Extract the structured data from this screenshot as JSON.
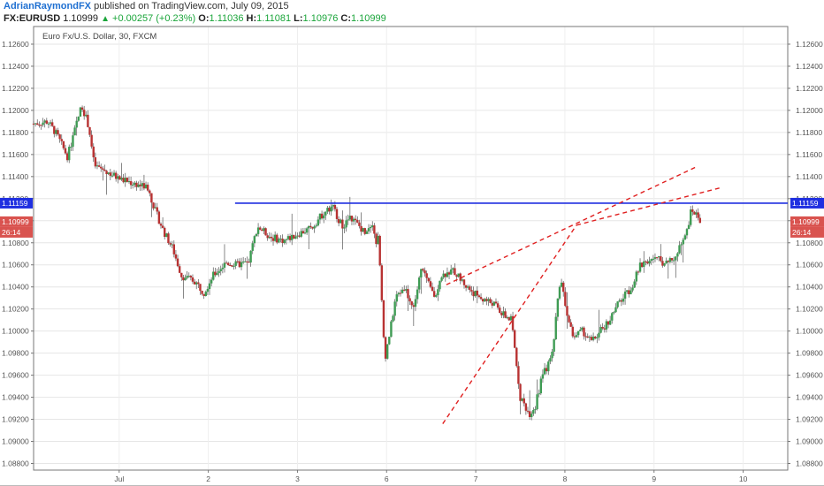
{
  "header": {
    "author": "AdrianRaymondFX",
    "published": " published on TradingView.com, July 09, 2015",
    "symbol": "FX:EURUSD",
    "price": "1.10999",
    "change": "+0.00257 (+0.23%)",
    "o_label": "O:",
    "o_value": "1.11036",
    "h_label": "H:",
    "h_value": "1.11081",
    "l_label": "L:",
    "l_value": "1.10976",
    "c_label": "C:",
    "c_value": "1.10999"
  },
  "colors": {
    "up": "#3e9b53",
    "down": "#b83232",
    "level": "#1f2fe0",
    "trend": "#e02020",
    "badge_price": "#d9534f",
    "badge_level": "#1f2fe0"
  },
  "chart_data": {
    "type": "candlestick",
    "title": "Euro Fx/U.S. Dollar, 30, FXCM",
    "y_ticks": [
      "1.12600",
      "1.12400",
      "1.12200",
      "1.12000",
      "1.11800",
      "1.11600",
      "1.11400",
      "1.11200",
      "1.11000",
      "1.10800",
      "1.10600",
      "1.10400",
      "1.10200",
      "1.10000",
      "1.09800",
      "1.09600",
      "1.09400",
      "1.09200",
      "1.09000",
      "1.08800"
    ],
    "ylim": [
      1.0874,
      1.1276
    ],
    "x_ticks": [
      {
        "label": "Jul",
        "t": 1
      },
      {
        "label": "2",
        "t": 2
      },
      {
        "label": "3",
        "t": 3
      },
      {
        "label": "6",
        "t": 4
      },
      {
        "label": "7",
        "t": 5
      },
      {
        "label": "8",
        "t": 6
      },
      {
        "label": "9",
        "t": 7
      },
      {
        "label": "10",
        "t": 8
      }
    ],
    "xlim": [
      0.04,
      8.5
    ],
    "last_price": {
      "value": 1.10999,
      "label": "1.10999",
      "countdown": "26:14"
    },
    "horizontal_level": {
      "value": 1.11159,
      "label": "1.11159",
      "x_start": 2.3
    },
    "trendlines": [
      {
        "x": [
          4.63,
          6.13
        ],
        "y": [
          1.0916,
          1.1096
        ]
      },
      {
        "x": [
          6.13,
          7.75
        ],
        "y": [
          1.1096,
          1.113
        ]
      },
      {
        "x": [
          4.67,
          7.48
        ],
        "y": [
          1.1042,
          1.1149
        ]
      }
    ],
    "path": [
      [
        0.04,
        1.1188
      ],
      [
        0.2,
        1.119
      ],
      [
        0.3,
        1.1178
      ],
      [
        0.42,
        1.1158
      ],
      [
        0.58,
        1.1205
      ],
      [
        0.66,
        1.1185
      ],
      [
        0.72,
        1.115
      ],
      [
        0.85,
        1.1145
      ],
      [
        1.0,
        1.1138
      ],
      [
        1.2,
        1.1133
      ],
      [
        1.32,
        1.113
      ],
      [
        1.4,
        1.111
      ],
      [
        1.5,
        1.109
      ],
      [
        1.6,
        1.1075
      ],
      [
        1.7,
        1.105
      ],
      [
        1.85,
        1.1045
      ],
      [
        1.95,
        1.1035
      ],
      [
        2.05,
        1.105
      ],
      [
        2.2,
        1.1062
      ],
      [
        2.3,
        1.106
      ],
      [
        2.45,
        1.1062
      ],
      [
        2.55,
        1.1095
      ],
      [
        2.7,
        1.1085
      ],
      [
        2.85,
        1.1082
      ],
      [
        3.0,
        1.1088
      ],
      [
        3.15,
        1.1093
      ],
      [
        3.3,
        1.1108
      ],
      [
        3.4,
        1.1112
      ],
      [
        3.5,
        1.1095
      ],
      [
        3.6,
        1.1103
      ],
      [
        3.75,
        1.109
      ],
      [
        3.85,
        1.11
      ],
      [
        3.88,
        1.1075
      ],
      [
        3.9,
        1.1095
      ],
      [
        3.98,
        1.0975
      ],
      [
        4.05,
        1.1005
      ],
      [
        4.1,
        1.103
      ],
      [
        4.2,
        1.104
      ],
      [
        4.3,
        1.102
      ],
      [
        4.4,
        1.106
      ],
      [
        4.45,
        1.1045
      ],
      [
        4.55,
        1.103
      ],
      [
        4.6,
        1.105
      ],
      [
        4.75,
        1.1055
      ],
      [
        4.9,
        1.104
      ],
      [
        5.05,
        1.103
      ],
      [
        5.2,
        1.1025
      ],
      [
        5.3,
        1.1015
      ],
      [
        5.4,
        1.101
      ],
      [
        5.5,
        1.094
      ],
      [
        5.6,
        1.0925
      ],
      [
        5.66,
        1.093
      ],
      [
        5.75,
        1.096
      ],
      [
        5.85,
        1.0975
      ],
      [
        5.95,
        1.105
      ],
      [
        6.05,
        1.1005
      ],
      [
        6.1,
        1.0995
      ],
      [
        6.2,
        1.1
      ],
      [
        6.3,
        1.099
      ],
      [
        6.4,
        1.1
      ],
      [
        6.5,
        1.101
      ],
      [
        6.6,
        1.1025
      ],
      [
        6.75,
        1.104
      ],
      [
        6.85,
        1.106
      ],
      [
        6.95,
        1.1065
      ],
      [
        7.05,
        1.1065
      ],
      [
        7.15,
        1.106
      ],
      [
        7.25,
        1.1069
      ],
      [
        7.35,
        1.1085
      ],
      [
        7.42,
        1.111
      ],
      [
        7.48,
        1.1105
      ],
      [
        7.52,
        1.11
      ]
    ],
    "series": [
      {
        "name": "EURUSD",
        "note": "OHLC candles synthesized along path"
      }
    ]
  }
}
